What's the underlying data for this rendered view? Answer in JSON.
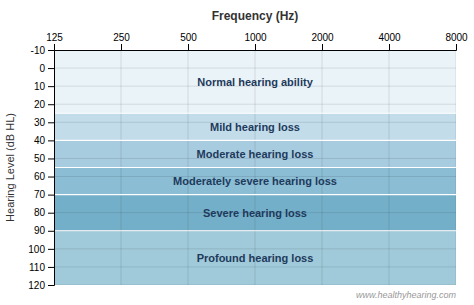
{
  "chart_data": {
    "type": "band",
    "x_label": "Frequency (Hz)",
    "y_label": "Hearing Level (dB HL)",
    "annotations": [
      "www.healthyhearing.com"
    ],
    "log": "x",
    "grid": true,
    "xlim": [
      125,
      8000
    ],
    "xticks": [
      125,
      250,
      500,
      1000,
      2000,
      4000,
      8000
    ],
    "ylim": [
      -10,
      120
    ],
    "yticks": [
      -10,
      0,
      10,
      20,
      30,
      40,
      50,
      60,
      70,
      80,
      90,
      100,
      110,
      120
    ],
    "series": [
      {
        "name": "Normal hearing ability",
        "color": "#eaf3f8",
        "values": [
          -10,
          25
        ]
      },
      {
        "name": "Mild hearing loss",
        "color": "#c2dcea",
        "values": [
          25,
          40
        ]
      },
      {
        "name": "Moderate hearing loss",
        "color": "#a8ccdf",
        "values": [
          40,
          55
        ]
      },
      {
        "name": "Moderately severe hearing loss",
        "color": "#8bbdd4",
        "values": [
          55,
          70
        ]
      },
      {
        "name": "Severe hearing loss",
        "color": "#74afc9",
        "values": [
          70,
          90
        ]
      },
      {
        "name": "Profound hearing loss",
        "color": "#a0cad9",
        "values": [
          90,
          120
        ]
      }
    ]
  }
}
